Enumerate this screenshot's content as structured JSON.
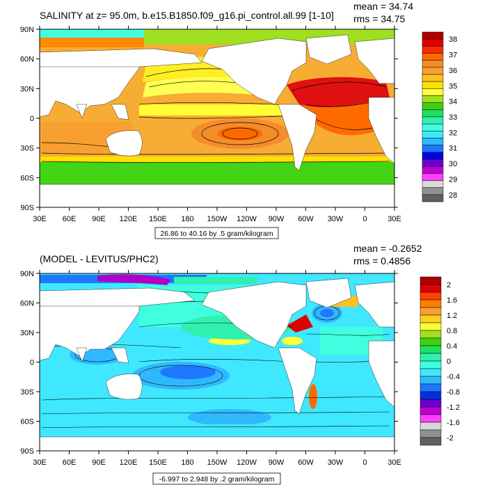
{
  "panels": [
    {
      "title": "SALINITY at z=  95.0m, b.e15.B1850.f09_g16.pi_control.all.99 [1-10]",
      "mean_text": "mean = 34.74",
      "rms_text": "rms = 34.75",
      "info_text": "26.86 to 40.16 by .5 gram/kilogram",
      "colorbar": {
        "labels": [
          "38",
          "37",
          "36",
          "35",
          "34",
          "33",
          "32",
          "31",
          "30",
          "29",
          "28"
        ],
        "colors": [
          "#b00000",
          "#e00000",
          "#ff2a00",
          "#ff6a00",
          "#f58c2b",
          "#f5a030",
          "#ffc020",
          "#ffe000",
          "#ffff33",
          "#a0e020",
          "#40d010",
          "#20e060",
          "#30f0b0",
          "#40ffe0",
          "#40e8ff",
          "#30b8ff",
          "#1e78ff",
          "#0000e0",
          "#6a00d0",
          "#c000d0",
          "#ff40ff",
          "#d8d8d8",
          "#909090",
          "#606060"
        ]
      }
    },
    {
      "title": "(MODEL - LEVITUS/PHC2)",
      "mean_text": "mean = -0.2652",
      "rms_text": "rms = 0.4856",
      "info_text": "-6.997 to 2.948 by .2 gram/kilogram",
      "colorbar": {
        "labels": [
          "2",
          "1.6",
          "1.2",
          "0.8",
          "0.4",
          "0",
          "-0.4",
          "-0.8",
          "-1.2",
          "-1.6",
          "-2"
        ],
        "colors": [
          "#b00000",
          "#e00000",
          "#ff4000",
          "#ff8000",
          "#f5a030",
          "#ffd020",
          "#ffff33",
          "#a0e020",
          "#40d010",
          "#20e060",
          "#30f0b0",
          "#40ffe0",
          "#40e8ff",
          "#30b8ff",
          "#1e78ff",
          "#0030e0",
          "#6a00d0",
          "#c000d0",
          "#ff40ff",
          "#d8d8d8",
          "#909090",
          "#606060"
        ]
      }
    }
  ],
  "axes": {
    "lat_labels": [
      "90N",
      "60N",
      "30N",
      "0",
      "30S",
      "60S",
      "90S"
    ],
    "lon_labels": [
      "30E",
      "60E",
      "90E",
      "120E",
      "150E",
      "180",
      "150W",
      "120W",
      "90W",
      "60W",
      "30W",
      "0",
      "30E"
    ]
  },
  "colors": {
    "land": "#ffffff",
    "frame": "#000000",
    "top_base_field": "#f7ad34",
    "top_southern": "#42d415",
    "top_atlantic_max": "#e01010",
    "top_yellow": "#ffee22",
    "bottom_base_field": "#40e8ff",
    "bottom_blue": "#1e78ff",
    "bottom_purple": "#b000c8"
  }
}
